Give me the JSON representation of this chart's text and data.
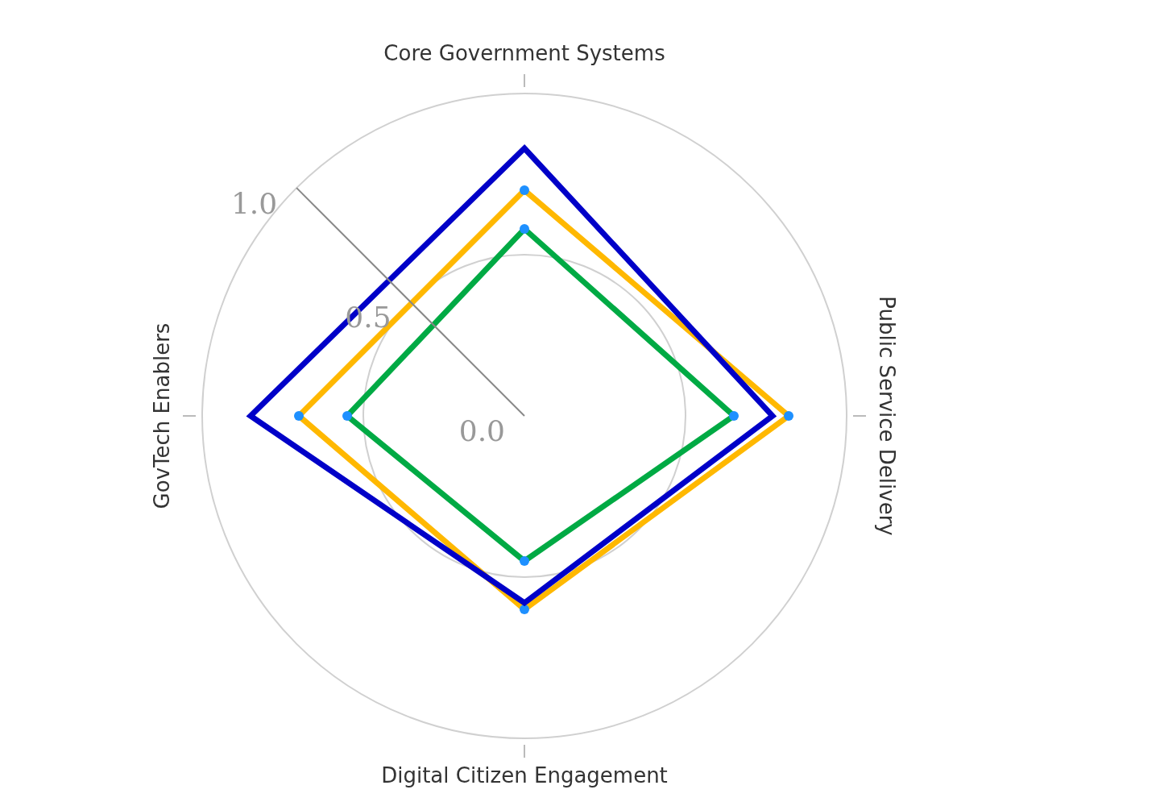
{
  "chart_data": {
    "type": "radar",
    "categories": [
      "Core Government Systems",
      "Public Service Delivery",
      "Digital Citizen Engagement",
      "GovTech Enablers"
    ],
    "series": [
      {
        "color": "#0000c8",
        "values": [
          0.83,
          0.77,
          0.58,
          0.85
        ],
        "marker": "none"
      },
      {
        "color": "#ffb800",
        "values": [
          0.7,
          0.82,
          0.6,
          0.7
        ],
        "marker": "circle"
      },
      {
        "color": "#00aa44",
        "values": [
          0.58,
          0.65,
          0.45,
          0.55
        ],
        "marker": "circle"
      }
    ],
    "ylim": [
      0,
      1
    ],
    "yticks": [
      {
        "value": 0,
        "label": "0.0"
      },
      {
        "value": 0.5,
        "label": "0.5"
      },
      {
        "value": 1,
        "label": "1.0"
      }
    ],
    "grid": true,
    "legend": false
  }
}
